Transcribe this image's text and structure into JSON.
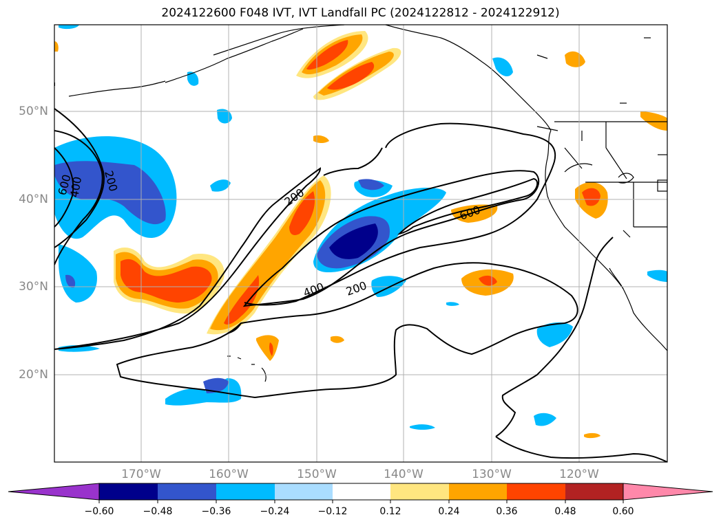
{
  "title": "2024122600 F048 IVT, IVT Landfall PC (2024122812 - 2024122912)",
  "lat_labels": [
    "50°N",
    "40°N",
    "30°N",
    "20°N"
  ],
  "lon_labels": [
    "170°W",
    "160°W",
    "150°W",
    "140°W",
    "130°W",
    "120°W"
  ],
  "contour_labels": [
    "600",
    "400",
    "200",
    "200",
    "600",
    "400",
    "200"
  ],
  "colorbar": {
    "ticks": [
      "−0.60",
      "−0.48",
      "−0.36",
      "−0.24",
      "−0.12",
      "0.12",
      "0.24",
      "0.36",
      "0.48",
      "0.60"
    ],
    "colors": [
      "#9933cc",
      "#00008b",
      "#3355cc",
      "#00bbff",
      "#aaddff",
      "#ffffff",
      "#ffe680",
      "#ffa500",
      "#ff4400",
      "#b22222",
      "#ff88aa"
    ]
  }
}
